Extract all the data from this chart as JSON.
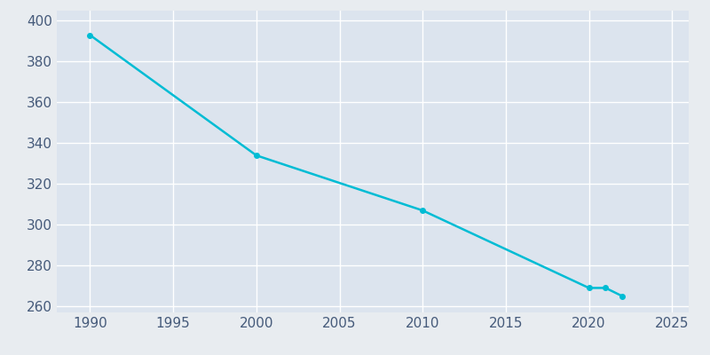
{
  "years": [
    1990,
    2000,
    2010,
    2020,
    2021,
    2022
  ],
  "population": [
    393,
    334,
    307,
    269,
    269,
    265
  ],
  "line_color": "#00bcd4",
  "marker_style": "o",
  "marker_size": 4,
  "line_width": 1.8,
  "figure_facecolor": "#e8ecf0",
  "axes_facecolor": "#dce4ee",
  "grid_color": "#ffffff",
  "tick_color": "#455a7a",
  "xlim": [
    1988,
    2026
  ],
  "ylim": [
    257,
    405
  ],
  "yticks": [
    260,
    280,
    300,
    320,
    340,
    360,
    380,
    400
  ],
  "xticks": [
    1990,
    1995,
    2000,
    2005,
    2010,
    2015,
    2020,
    2025
  ],
  "tick_labelsize": 11
}
